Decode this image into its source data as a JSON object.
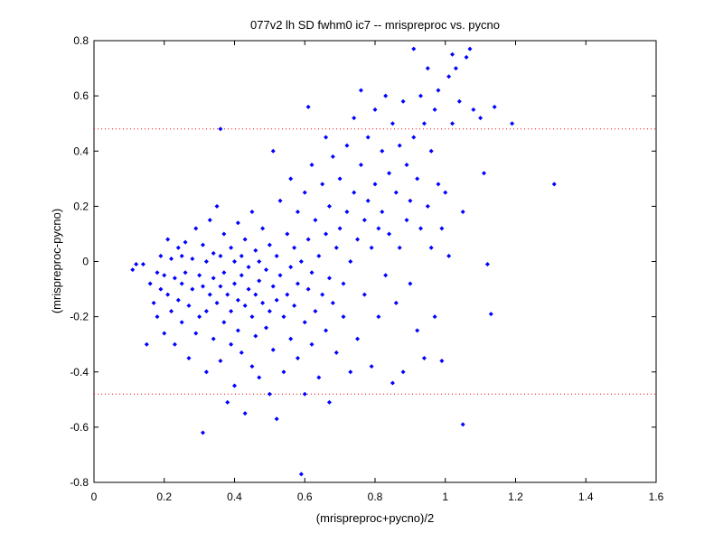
{
  "chart_data": {
    "type": "scatter",
    "title": "077v2 lh SD fwhm0 ic7 -- mrispreproc vs. pycno",
    "xlabel": "(mrispreproc+pycno)/2",
    "ylabel": "(mrispreproc-pycno)",
    "xlim": [
      0,
      1.6
    ],
    "ylim": [
      -0.8,
      0.8
    ],
    "xticks": [
      "0",
      "0.2",
      "0.4",
      "0.6",
      "0.8",
      "1",
      "1.2",
      "1.4",
      "1.6"
    ],
    "yticks": [
      "0.8",
      "0.6",
      "0.4",
      "0.2",
      "0",
      "-0.2",
      "-0.4",
      "-0.6",
      "-0.8"
    ],
    "grid": false,
    "marker_color": "#0000ff",
    "reference_line_color": "#ff0000",
    "reference_lines_y": [
      0.48,
      -0.48
    ],
    "series": [
      {
        "points": [
          [
            0.11,
            -0.03
          ],
          [
            0.12,
            -0.01
          ],
          [
            0.14,
            -0.01
          ],
          [
            0.15,
            -0.3
          ],
          [
            0.16,
            -0.08
          ],
          [
            0.17,
            -0.15
          ],
          [
            0.18,
            -0.04
          ],
          [
            0.18,
            -0.2
          ],
          [
            0.19,
            0.02
          ],
          [
            0.19,
            -0.1
          ],
          [
            0.2,
            -0.05
          ],
          [
            0.2,
            -0.26
          ],
          [
            0.21,
            0.08
          ],
          [
            0.21,
            -0.12
          ],
          [
            0.22,
            0.01
          ],
          [
            0.22,
            -0.18
          ],
          [
            0.23,
            -0.06
          ],
          [
            0.23,
            -0.3
          ],
          [
            0.24,
            0.05
          ],
          [
            0.24,
            -0.14
          ],
          [
            0.25,
            0.02
          ],
          [
            0.25,
            -0.08
          ],
          [
            0.25,
            -0.22
          ],
          [
            0.26,
            0.07
          ],
          [
            0.26,
            -0.04
          ],
          [
            0.27,
            -0.16
          ],
          [
            0.27,
            -0.35
          ],
          [
            0.28,
            0.01
          ],
          [
            0.28,
            -0.1
          ],
          [
            0.29,
            0.12
          ],
          [
            0.29,
            -0.26
          ],
          [
            0.3,
            -0.05
          ],
          [
            0.3,
            -0.2
          ],
          [
            0.31,
            0.06
          ],
          [
            0.31,
            -0.09
          ],
          [
            0.31,
            -0.62
          ],
          [
            0.32,
            0.0
          ],
          [
            0.32,
            -0.18
          ],
          [
            0.32,
            -0.4
          ],
          [
            0.33,
            0.15
          ],
          [
            0.33,
            -0.12
          ],
          [
            0.34,
            0.03
          ],
          [
            0.34,
            -0.06
          ],
          [
            0.34,
            -0.28
          ],
          [
            0.35,
            0.2
          ],
          [
            0.35,
            -0.15
          ],
          [
            0.36,
            0.48
          ],
          [
            0.36,
            0.02
          ],
          [
            0.36,
            -0.09
          ],
          [
            0.36,
            -0.36
          ],
          [
            0.37,
            0.1
          ],
          [
            0.37,
            -0.04
          ],
          [
            0.37,
            -0.22
          ],
          [
            0.38,
            -0.12
          ],
          [
            0.38,
            -0.51
          ],
          [
            0.39,
            0.05
          ],
          [
            0.39,
            -0.18
          ],
          [
            0.39,
            -0.3
          ],
          [
            0.4,
            0.0
          ],
          [
            0.4,
            -0.08
          ],
          [
            0.4,
            -0.45
          ],
          [
            0.41,
            0.14
          ],
          [
            0.41,
            -0.14
          ],
          [
            0.41,
            -0.25
          ],
          [
            0.42,
            0.02
          ],
          [
            0.42,
            -0.05
          ],
          [
            0.42,
            -0.33
          ],
          [
            0.43,
            0.08
          ],
          [
            0.43,
            -0.16
          ],
          [
            0.43,
            -0.55
          ],
          [
            0.44,
            -0.02
          ],
          [
            0.44,
            -0.1
          ],
          [
            0.45,
            0.18
          ],
          [
            0.45,
            -0.2
          ],
          [
            0.45,
            -0.38
          ],
          [
            0.46,
            0.04
          ],
          [
            0.46,
            -0.12
          ],
          [
            0.46,
            -0.27
          ],
          [
            0.47,
            0.0
          ],
          [
            0.47,
            -0.07
          ],
          [
            0.47,
            -0.42
          ],
          [
            0.48,
            0.12
          ],
          [
            0.48,
            -0.15
          ],
          [
            0.49,
            -0.03
          ],
          [
            0.49,
            -0.24
          ],
          [
            0.5,
            0.06
          ],
          [
            0.5,
            -0.18
          ],
          [
            0.5,
            -0.48
          ],
          [
            0.51,
            0.4
          ],
          [
            0.51,
            -0.09
          ],
          [
            0.51,
            -0.32
          ],
          [
            0.52,
            0.02
          ],
          [
            0.52,
            -0.14
          ],
          [
            0.52,
            -0.57
          ],
          [
            0.53,
            0.22
          ],
          [
            0.53,
            -0.05
          ],
          [
            0.54,
            -0.2
          ],
          [
            0.54,
            -0.4
          ],
          [
            0.55,
            0.1
          ],
          [
            0.55,
            -0.12
          ],
          [
            0.56,
            0.3
          ],
          [
            0.56,
            -0.02
          ],
          [
            0.56,
            -0.28
          ],
          [
            0.57,
            0.05
          ],
          [
            0.57,
            -0.16
          ],
          [
            0.58,
            0.18
          ],
          [
            0.58,
            -0.08
          ],
          [
            0.58,
            -0.35
          ],
          [
            0.59,
            -0.77
          ],
          [
            0.59,
            0.0
          ],
          [
            0.6,
            0.25
          ],
          [
            0.6,
            -0.22
          ],
          [
            0.6,
            -0.48
          ],
          [
            0.61,
            0.56
          ],
          [
            0.61,
            0.08
          ],
          [
            0.61,
            -0.1
          ],
          [
            0.62,
            0.35
          ],
          [
            0.62,
            -0.04
          ],
          [
            0.62,
            -0.3
          ],
          [
            0.63,
            0.15
          ],
          [
            0.63,
            -0.18
          ],
          [
            0.64,
            0.02
          ],
          [
            0.64,
            -0.42
          ],
          [
            0.65,
            0.28
          ],
          [
            0.65,
            -0.12
          ],
          [
            0.66,
            0.45
          ],
          [
            0.66,
            0.1
          ],
          [
            0.66,
            -0.25
          ],
          [
            0.67,
            0.2
          ],
          [
            0.67,
            -0.06
          ],
          [
            0.67,
            -0.51
          ],
          [
            0.68,
            0.38
          ],
          [
            0.68,
            -0.15
          ],
          [
            0.69,
            0.05
          ],
          [
            0.69,
            -0.33
          ],
          [
            0.7,
            0.3
          ],
          [
            0.7,
            0.12
          ],
          [
            0.71,
            -0.08
          ],
          [
            0.71,
            -0.2
          ],
          [
            0.72,
            0.42
          ],
          [
            0.72,
            0.18
          ],
          [
            0.73,
            0.0
          ],
          [
            0.73,
            -0.4
          ],
          [
            0.74,
            0.52
          ],
          [
            0.74,
            0.25
          ],
          [
            0.75,
            0.08
          ],
          [
            0.75,
            -0.28
          ],
          [
            0.76,
            0.62
          ],
          [
            0.76,
            0.35
          ],
          [
            0.77,
            0.15
          ],
          [
            0.77,
            -0.12
          ],
          [
            0.78,
            0.45
          ],
          [
            0.78,
            0.22
          ],
          [
            0.79,
            0.05
          ],
          [
            0.79,
            -0.38
          ],
          [
            0.8,
            0.55
          ],
          [
            0.8,
            0.28
          ],
          [
            0.81,
            0.12
          ],
          [
            0.81,
            -0.2
          ],
          [
            0.82,
            0.4
          ],
          [
            0.82,
            0.18
          ],
          [
            0.83,
            0.6
          ],
          [
            0.83,
            -0.05
          ],
          [
            0.84,
            0.32
          ],
          [
            0.84,
            0.1
          ],
          [
            0.85,
            -0.44
          ],
          [
            0.85,
            0.5
          ],
          [
            0.86,
            0.25
          ],
          [
            0.86,
            -0.15
          ],
          [
            0.87,
            0.42
          ],
          [
            0.87,
            0.05
          ],
          [
            0.88,
            0.58
          ],
          [
            0.88,
            -0.4
          ],
          [
            0.89,
            0.35
          ],
          [
            0.89,
            0.15
          ],
          [
            0.9,
            0.22
          ],
          [
            0.9,
            -0.08
          ],
          [
            0.91,
            0.77
          ],
          [
            0.91,
            0.45
          ],
          [
            0.92,
            0.3
          ],
          [
            0.92,
            -0.25
          ],
          [
            0.93,
            0.6
          ],
          [
            0.93,
            0.12
          ],
          [
            0.94,
            0.5
          ],
          [
            0.94,
            -0.35
          ],
          [
            0.95,
            0.2
          ],
          [
            0.95,
            0.7
          ],
          [
            0.96,
            0.4
          ],
          [
            0.96,
            0.05
          ],
          [
            0.97,
            0.55
          ],
          [
            0.97,
            -0.2
          ],
          [
            0.98,
            0.28
          ],
          [
            0.98,
            0.62
          ],
          [
            0.99,
            0.12
          ],
          [
            0.99,
            -0.36
          ],
          [
            1.0,
            0.25
          ],
          [
            1.01,
            0.67
          ],
          [
            1.01,
            0.02
          ],
          [
            1.02,
            0.75
          ],
          [
            1.02,
            0.5
          ],
          [
            1.03,
            0.7
          ],
          [
            1.04,
            0.58
          ],
          [
            1.05,
            -0.59
          ],
          [
            1.05,
            0.18
          ],
          [
            1.06,
            0.74
          ],
          [
            1.07,
            0.77
          ],
          [
            1.08,
            0.55
          ],
          [
            1.1,
            0.52
          ],
          [
            1.11,
            0.32
          ],
          [
            1.12,
            -0.01
          ],
          [
            1.13,
            -0.19
          ],
          [
            1.14,
            0.56
          ],
          [
            1.19,
            0.5
          ],
          [
            1.31,
            0.28
          ]
        ]
      }
    ]
  }
}
